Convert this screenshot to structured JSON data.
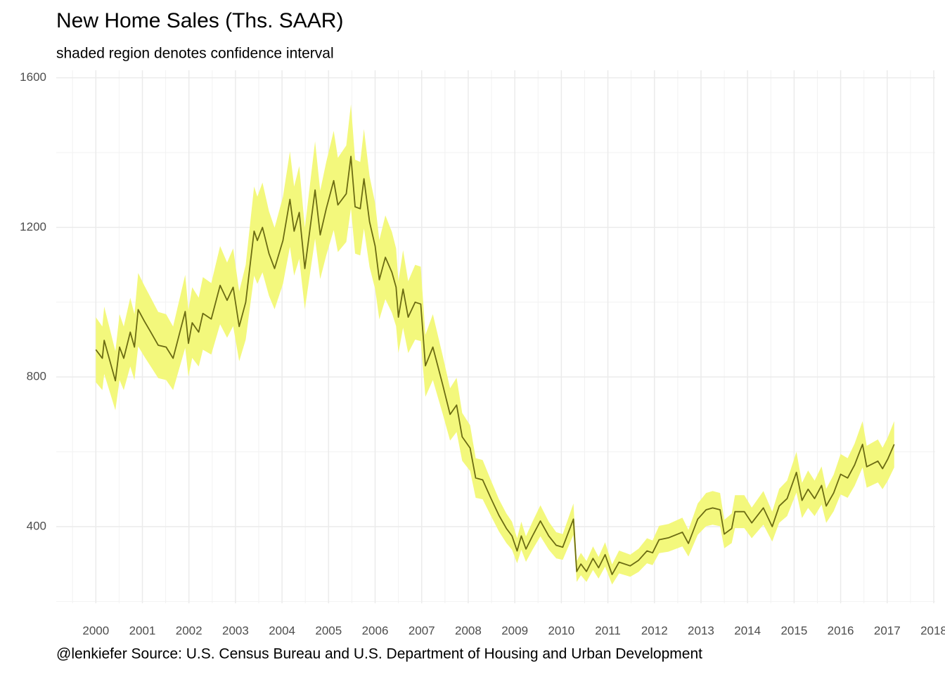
{
  "chart_data": {
    "type": "line",
    "title": "New Home Sales (Ths. SAAR)",
    "subtitle": "shaded region denotes confidence interval",
    "caption": "@lenkiefer Source: U.S. Census Bureau and U.S. Department of Housing and Urban Development",
    "line_color": "#6b6b12",
    "band_color": "#f3f87c",
    "grid": true,
    "xlim": [
      1999.15,
      2018.03
    ],
    "xticks": [
      2000,
      2001,
      2002,
      2003,
      2004,
      2005,
      2006,
      2007,
      2008,
      2009,
      2010,
      2011,
      2012,
      2013,
      2014,
      2015,
      2016,
      2017,
      2018
    ],
    "ylim": [
      195,
      1620
    ],
    "yticks": [
      400,
      800,
      1200,
      1600
    ],
    "x": [
      2000.0,
      2000.14,
      2000.18,
      2000.32,
      2000.42,
      2000.51,
      2000.6,
      2000.74,
      2000.83,
      2000.91,
      2001.04,
      2001.18,
      2001.34,
      2001.51,
      2001.66,
      2001.92,
      2001.99,
      2002.07,
      2002.21,
      2002.3,
      2002.48,
      2002.67,
      2002.82,
      2002.95,
      2003.08,
      2003.22,
      2003.4,
      2003.47,
      2003.58,
      2003.72,
      2003.84,
      2004.02,
      2004.17,
      2004.26,
      2004.37,
      2004.49,
      2004.71,
      2004.82,
      2004.95,
      2005.11,
      2005.2,
      2005.38,
      2005.48,
      2005.57,
      2005.68,
      2005.76,
      2005.88,
      2006.0,
      2006.09,
      2006.22,
      2006.36,
      2006.45,
      2006.5,
      2006.6,
      2006.71,
      2006.86,
      2006.98,
      2007.08,
      2007.24,
      2007.45,
      2007.61,
      2007.75,
      2007.87,
      2008.04,
      2008.16,
      2008.31,
      2008.49,
      2008.66,
      2008.82,
      2008.94,
      2009.05,
      2009.14,
      2009.24,
      2009.38,
      2009.55,
      2009.73,
      2009.89,
      2010.03,
      2010.26,
      2010.33,
      2010.42,
      2010.54,
      2010.68,
      2010.8,
      2010.94,
      2011.09,
      2011.24,
      2011.48,
      2011.66,
      2011.84,
      2011.96,
      2012.1,
      2012.3,
      2012.6,
      2012.73,
      2012.93,
      2013.11,
      2013.25,
      2013.41,
      2013.5,
      2013.66,
      2013.73,
      2013.93,
      2014.09,
      2014.34,
      2014.53,
      2014.68,
      2014.85,
      2015.05,
      2015.17,
      2015.3,
      2015.44,
      2015.59,
      2015.69,
      2015.85,
      2016.0,
      2016.15,
      2016.3,
      2016.47,
      2016.56,
      2016.8,
      2016.9,
      2017.01,
      2017.15
    ],
    "values": [
      873,
      850,
      898,
      835,
      790,
      880,
      850,
      920,
      880,
      980,
      950,
      920,
      885,
      880,
      850,
      975,
      890,
      945,
      920,
      970,
      955,
      1045,
      1005,
      1040,
      935,
      1000,
      1190,
      1165,
      1200,
      1130,
      1090,
      1165,
      1275,
      1190,
      1240,
      1090,
      1300,
      1180,
      1250,
      1325,
      1260,
      1290,
      1390,
      1255,
      1250,
      1330,
      1215,
      1150,
      1060,
      1120,
      1080,
      1040,
      960,
      1035,
      960,
      1000,
      995,
      830,
      880,
      780,
      700,
      725,
      640,
      610,
      530,
      525,
      475,
      430,
      395,
      375,
      335,
      375,
      340,
      375,
      415,
      375,
      350,
      345,
      420,
      280,
      300,
      280,
      315,
      290,
      325,
      272,
      305,
      295,
      310,
      335,
      330,
      365,
      370,
      385,
      355,
      420,
      445,
      450,
      445,
      380,
      395,
      440,
      440,
      410,
      450,
      400,
      455,
      475,
      545,
      470,
      500,
      475,
      510,
      455,
      490,
      540,
      530,
      565,
      620,
      560,
      575,
      555,
      580,
      620
    ],
    "ci_low": [
      786,
      765,
      808,
      752,
      711,
      792,
      765,
      828,
      792,
      882,
      855,
      828,
      797,
      792,
      765,
      878,
      801,
      851,
      828,
      873,
      860,
      941,
      905,
      936,
      842,
      900,
      1071,
      1049,
      1080,
      1017,
      981,
      1049,
      1148,
      1071,
      1116,
      981,
      1170,
      1062,
      1125,
      1193,
      1134,
      1161,
      1251,
      1130,
      1125,
      1197,
      1094,
      1035,
      954,
      1008,
      972,
      936,
      864,
      932,
      864,
      900,
      896,
      747,
      792,
      702,
      630,
      653,
      576,
      549,
      477,
      473,
      428,
      387,
      356,
      338,
      302,
      338,
      306,
      338,
      374,
      338,
      315,
      311,
      378,
      252,
      270,
      252,
      284,
      261,
      293,
      245,
      275,
      266,
      279,
      302,
      297,
      329,
      333,
      347,
      320,
      378,
      401,
      405,
      401,
      342,
      356,
      396,
      396,
      369,
      405,
      360,
      410,
      428,
      491,
      423,
      450,
      428,
      459,
      410,
      441,
      486,
      477,
      509,
      558,
      504,
      518,
      500,
      522,
      558
    ],
    "ci_high": [
      960,
      935,
      988,
      919,
      869,
      968,
      935,
      1012,
      968,
      1078,
      1045,
      1012,
      974,
      968,
      935,
      1073,
      979,
      1040,
      1012,
      1067,
      1051,
      1150,
      1106,
      1144,
      1029,
      1100,
      1309,
      1282,
      1320,
      1243,
      1199,
      1282,
      1403,
      1309,
      1364,
      1199,
      1430,
      1298,
      1375,
      1458,
      1386,
      1419,
      1529,
      1381,
      1375,
      1463,
      1337,
      1265,
      1166,
      1232,
      1188,
      1144,
      1056,
      1139,
      1056,
      1100,
      1095,
      913,
      968,
      858,
      770,
      798,
      704,
      671,
      583,
      578,
      523,
      473,
      435,
      413,
      369,
      413,
      374,
      413,
      457,
      413,
      385,
      380,
      462,
      308,
      330,
      308,
      347,
      319,
      358,
      299,
      336,
      325,
      341,
      369,
      363,
      402,
      407,
      424,
      391,
      462,
      490,
      495,
      490,
      418,
      435,
      484,
      484,
      451,
      495,
      440,
      501,
      523,
      600,
      517,
      550,
      523,
      561,
      501,
      539,
      594,
      583,
      622,
      682,
      616,
      633,
      611,
      638,
      682
    ]
  }
}
